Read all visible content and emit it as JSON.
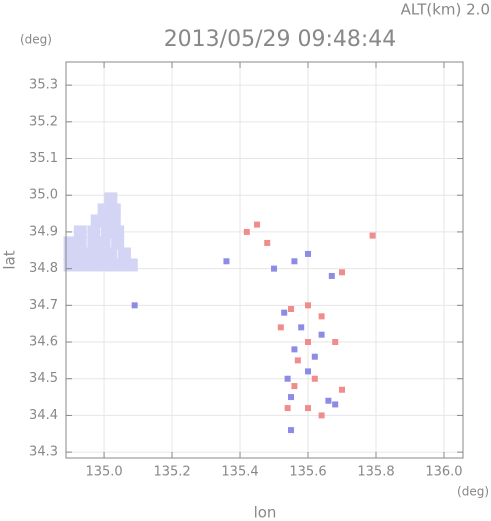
{
  "chart_data": {
    "type": "scatter",
    "title": "2013/05/29 09:48:44",
    "subtitle": "ALT(km) 2.0",
    "y_unit": "(deg)",
    "x_unit": "(deg)",
    "xlabel": "lon",
    "ylabel": "lat",
    "xlim": [
      134.888,
      136.056
    ],
    "ylim": [
      34.284,
      35.363
    ],
    "xticks": [
      {
        "value": 135,
        "label": "135.0"
      },
      135.2,
      135.4,
      135.6,
      135.8,
      {
        "value": 136,
        "label": "136.0"
      }
    ],
    "yticks": [
      34.3,
      34.4,
      34.5,
      34.6,
      34.7,
      34.8,
      34.9,
      {
        "value": 35,
        "label": "35.0"
      },
      35.1,
      35.2,
      35.3
    ],
    "grid": true,
    "series": [
      {
        "color": "#d4d4f4",
        "x": [
          134.9,
          134.93,
          134.96,
          134.99,
          135.02,
          135.05,
          135.08,
          134.9,
          134.93,
          134.96,
          134.99,
          135.02,
          135.06,
          134.9,
          134.93,
          134.97,
          135.0,
          135.04,
          134.93,
          134.97,
          135.01,
          135.04,
          134.98,
          135.01,
          135.03,
          135.0,
          135.03,
          135.02
        ],
        "values": [
          34.81,
          34.81,
          34.81,
          34.81,
          34.81,
          34.81,
          34.81,
          34.84,
          34.84,
          34.84,
          34.84,
          34.84,
          34.84,
          34.87,
          34.87,
          34.87,
          34.87,
          34.87,
          34.9,
          34.9,
          34.9,
          34.9,
          34.93,
          34.93,
          34.93,
          34.96,
          34.96,
          34.99
        ]
      },
      {
        "color": "#8c8ce6",
        "x": [
          135.09,
          135.55,
          135.5,
          135.56,
          135.6,
          135.53,
          135.58,
          135.56,
          135.62,
          135.54,
          135.6,
          135.66,
          135.68,
          135.55,
          135.64,
          135.67,
          135.36
        ],
        "values": [
          34.7,
          34.36,
          34.8,
          34.82,
          34.84,
          34.68,
          34.64,
          34.58,
          34.56,
          34.5,
          34.52,
          34.44,
          34.43,
          34.45,
          34.62,
          34.78,
          34.82
        ]
      },
      {
        "color": "#f08c8c",
        "x": [
          135.45,
          135.42,
          135.55,
          135.6,
          135.64,
          135.52,
          135.6,
          135.57,
          135.62,
          135.56,
          135.54,
          135.6,
          135.64,
          135.7,
          135.68,
          135.79,
          135.7,
          135.48
        ],
        "values": [
          34.92,
          34.9,
          34.69,
          34.7,
          34.67,
          34.64,
          34.6,
          34.55,
          34.5,
          34.48,
          34.42,
          34.42,
          34.4,
          34.47,
          34.6,
          34.89,
          34.79,
          34.87
        ]
      }
    ]
  }
}
